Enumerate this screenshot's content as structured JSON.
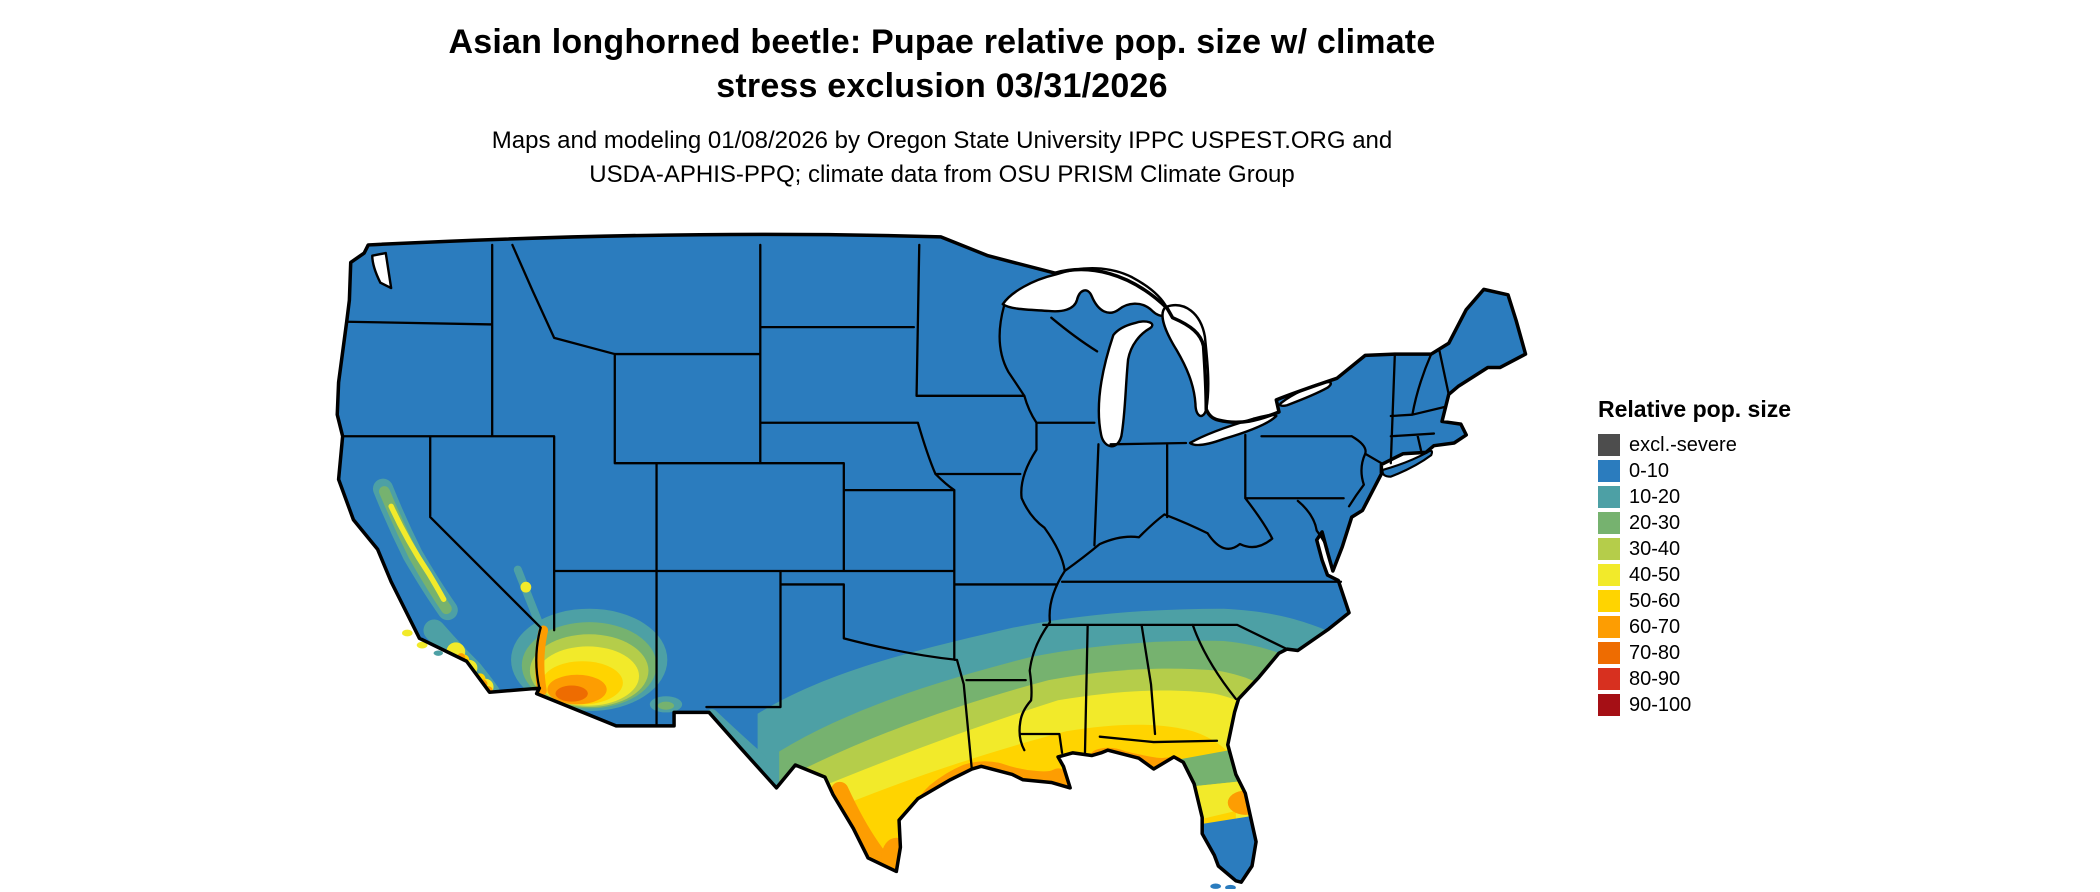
{
  "title": {
    "line1": "Asian longhorned beetle: Pupae relative pop. size w/ climate",
    "line2": "stress exclusion 03/31/2026"
  },
  "subtitle": {
    "line1": "Maps and modeling 01/08/2026 by Oregon State University IPPC USPEST.ORG and",
    "line2": "USDA-APHIS-PPQ; climate data from OSU PRISM Climate Group"
  },
  "legend": {
    "title": "Relative pop. size",
    "items": [
      {
        "label": "excl.-severe",
        "color": "#4d4d4d"
      },
      {
        "label": "0-10",
        "color": "#2b7cbe"
      },
      {
        "label": "10-20",
        "color": "#4da0a5"
      },
      {
        "label": "20-30",
        "color": "#76b26f"
      },
      {
        "label": "30-40",
        "color": "#b5cd4a"
      },
      {
        "label": "40-50",
        "color": "#f2ea2a"
      },
      {
        "label": "50-60",
        "color": "#ffd400"
      },
      {
        "label": "60-70",
        "color": "#fd9d02"
      },
      {
        "label": "70-80",
        "color": "#ee6c01"
      },
      {
        "label": "80-90",
        "color": "#d7301f"
      },
      {
        "label": "90-100",
        "color": "#a50f15"
      }
    ]
  },
  "colors": {
    "blue": "#2b7cbe",
    "teal": "#4da0a5",
    "green": "#76b26f",
    "ygreen": "#b5cd4a",
    "yellow": "#f2ea2a",
    "gold": "#ffd400",
    "orange": "#fd9d02",
    "dorange": "#ee6c01",
    "gray": "#4d4d4d",
    "border": "#000000",
    "water": "#ffffff"
  },
  "map": {
    "type": "raster-choropleth",
    "area": "conterminous United States with state borders",
    "pattern": "mostly 0-10 (blue); values rise southward through teal/green/yellow bands to orange along the Gulf Coast, south Texas, southern Arizona and southern California; southern Florida low (blue)"
  }
}
